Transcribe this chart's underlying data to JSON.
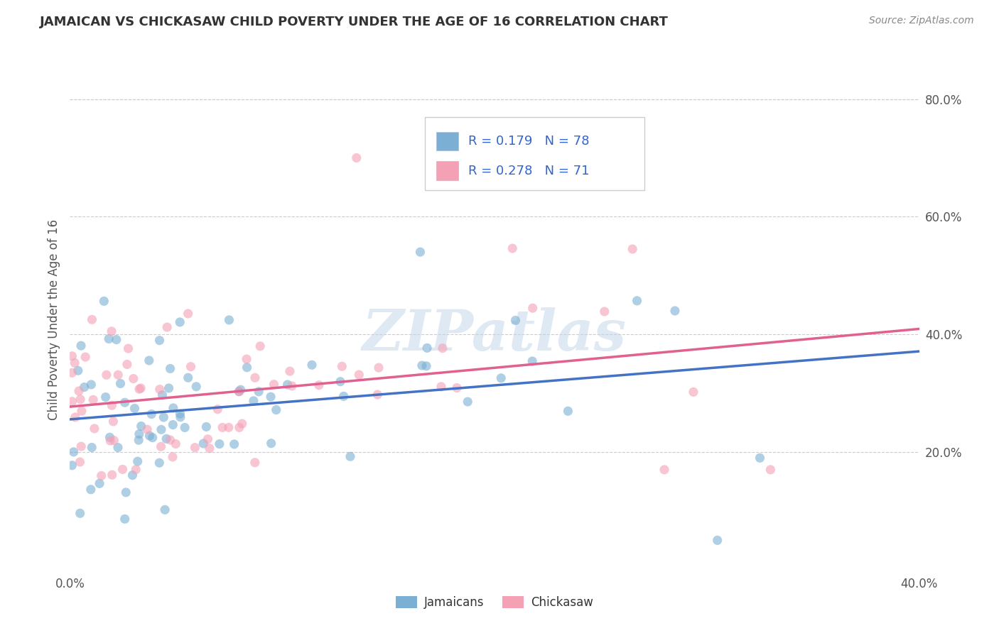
{
  "title": "JAMAICAN VS CHICKASAW CHILD POVERTY UNDER THE AGE OF 16 CORRELATION CHART",
  "source_text": "Source: ZipAtlas.com",
  "ylabel": "Child Poverty Under the Age of 16",
  "xlabel_jamaicans": "Jamaicans",
  "xlabel_chickasaw": "Chickasaw",
  "xlim": [
    0.0,
    0.4
  ],
  "ylim": [
    0.0,
    0.85
  ],
  "xtick_labels": [
    "0.0%",
    "40.0%"
  ],
  "xtick_vals": [
    0.0,
    0.4
  ],
  "ytick_labels_right": [
    "20.0%",
    "40.0%",
    "60.0%",
    "80.0%"
  ],
  "ytick_vals_right": [
    0.2,
    0.4,
    0.6,
    0.8
  ],
  "R_jamaican": 0.179,
  "N_jamaican": 78,
  "R_chickasaw": 0.278,
  "N_chickasaw": 71,
  "color_jamaican": "#7bafd4",
  "color_chickasaw": "#f4a0b5",
  "trendline_color_jamaican": "#4472c4",
  "trendline_color_chickasaw": "#e06090",
  "watermark": "ZIPatlas",
  "background_color": "#ffffff",
  "grid_color": "#cccccc",
  "legend_text_color": "#3366cc",
  "title_color": "#333333",
  "source_color": "#888888"
}
